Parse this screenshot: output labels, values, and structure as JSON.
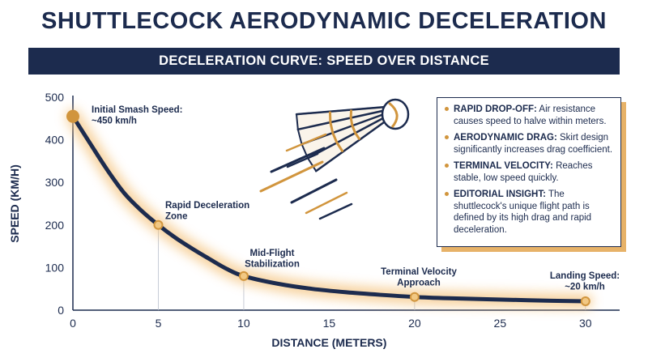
{
  "title": "SHUTTLECOCK AERODYNAMIC DECELERATION",
  "subtitle": "DECELERATION CURVE: SPEED OVER DISTANCE",
  "colors": {
    "navy": "#1c2b4e",
    "gold": "#d1953d",
    "glow": "#f4c27c",
    "white": "#ffffff"
  },
  "chart_data": {
    "type": "line",
    "xlabel": "DISTANCE (METERS)",
    "ylabel": "SPEED (KM/H)",
    "xlim": [
      0,
      32
    ],
    "ylim": [
      0,
      500
    ],
    "x_ticks": [
      0,
      5,
      10,
      15,
      20,
      25,
      30
    ],
    "y_ticks": [
      0,
      100,
      200,
      300,
      400,
      500
    ],
    "grid": false,
    "series": [
      {
        "x": [
          0,
          1,
          2,
          3,
          4,
          5,
          6,
          7,
          8,
          9,
          10,
          12,
          14,
          16,
          18,
          20,
          22,
          24,
          26,
          28,
          30
        ],
        "y": [
          455,
          392,
          330,
          275,
          234,
          200,
          170,
          144,
          120,
          97,
          80,
          62,
          50,
          42,
          36,
          31,
          28,
          26,
          24,
          22,
          21
        ]
      }
    ],
    "markers": [
      {
        "x": 0,
        "y": 455
      },
      {
        "x": 5,
        "y": 200
      },
      {
        "x": 10,
        "y": 80
      },
      {
        "x": 20,
        "y": 31
      },
      {
        "x": 30,
        "y": 21
      }
    ],
    "annotations": [
      {
        "lines": [
          "Initial Smash Speed:",
          "~450 km/h"
        ]
      },
      {
        "lines": [
          "Rapid Deceleration",
          "Zone"
        ]
      },
      {
        "lines": [
          "Mid-Flight",
          "Stabilization"
        ]
      },
      {
        "lines": [
          "Terminal Velocity",
          "Approach"
        ]
      },
      {
        "lines": [
          "Landing Speed:",
          "~20 km/h"
        ]
      }
    ]
  },
  "illustration": {
    "icon": "shuttlecock-icon"
  },
  "legend": [
    {
      "term": "RAPID DROP-OFF:",
      "text": " Air resistance causes speed to halve within meters."
    },
    {
      "term": "AERODYNAMIC DRAG:",
      "text": " Skirt design significantly increases drag coefficient."
    },
    {
      "term": "TERMINAL VELOCITY:",
      "text": " Reaches stable, low speed quickly."
    },
    {
      "term": "EDITORIAL INSIGHT:",
      "text": " The shuttlecock's unique flight path is defined by its high drag and rapid deceleration."
    }
  ]
}
